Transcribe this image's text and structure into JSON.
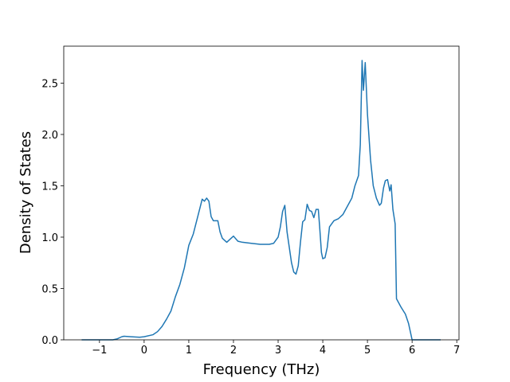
{
  "chart_data": {
    "type": "line",
    "xlabel": "Frequency (THz)",
    "ylabel": "Density of States",
    "color": "#1f77b4",
    "x": [
      -1.4,
      -1.0,
      -0.7,
      -0.6,
      -0.5,
      -0.45,
      -0.3,
      -0.1,
      0,
      0.2,
      0.3,
      0.4,
      0.5,
      0.6,
      0.7,
      0.8,
      0.9,
      1.0,
      1.1,
      1.2,
      1.3,
      1.35,
      1.4,
      1.45,
      1.5,
      1.55,
      1.65,
      1.7,
      1.75,
      1.85,
      1.9,
      2.0,
      2.1,
      2.2,
      2.4,
      2.6,
      2.8,
      2.9,
      3.0,
      3.05,
      3.1,
      3.15,
      3.2,
      3.3,
      3.35,
      3.4,
      3.45,
      3.5,
      3.55,
      3.6,
      3.65,
      3.7,
      3.75,
      3.8,
      3.85,
      3.9,
      3.93,
      3.97,
      4.0,
      4.05,
      4.1,
      4.15,
      4.25,
      4.35,
      4.45,
      4.55,
      4.65,
      4.72,
      4.8,
      4.84,
      4.88,
      4.91,
      4.95,
      5.0,
      5.07,
      5.13,
      5.2,
      5.27,
      5.31,
      5.36,
      5.4,
      5.45,
      5.5,
      5.53,
      5.57,
      5.62,
      5.65,
      5.75,
      5.85,
      5.92,
      5.96,
      6.0,
      6.64
    ],
    "values": [
      0,
      0,
      0,
      0.01,
      0.03,
      0.035,
      0.03,
      0.025,
      0.03,
      0.05,
      0.08,
      0.13,
      0.2,
      0.28,
      0.42,
      0.54,
      0.7,
      0.92,
      1.03,
      1.2,
      1.37,
      1.35,
      1.38,
      1.35,
      1.2,
      1.16,
      1.16,
      1.05,
      0.99,
      0.95,
      0.97,
      1.01,
      0.96,
      0.95,
      0.94,
      0.93,
      0.93,
      0.94,
      1.0,
      1.1,
      1.25,
      1.31,
      1.05,
      0.75,
      0.66,
      0.64,
      0.72,
      0.95,
      1.15,
      1.17,
      1.32,
      1.26,
      1.25,
      1.19,
      1.27,
      1.27,
      1.1,
      0.85,
      0.79,
      0.8,
      0.9,
      1.1,
      1.16,
      1.18,
      1.22,
      1.3,
      1.38,
      1.5,
      1.6,
      1.9,
      2.72,
      2.43,
      2.7,
      2.2,
      1.75,
      1.5,
      1.38,
      1.31,
      1.33,
      1.48,
      1.55,
      1.56,
      1.45,
      1.51,
      1.27,
      1.13,
      0.4,
      0.32,
      0.25,
      0.16,
      0.08,
      0.0,
      0
    ],
    "xlim": [
      -1.8,
      7.05
    ],
    "ylim": [
      0,
      2.86
    ],
    "xticks": [
      {
        "value": -1,
        "label": "−1"
      },
      0,
      1,
      2,
      3,
      4,
      5,
      6,
      7
    ],
    "yticks": [
      {
        "value": 0,
        "label": "0.0"
      },
      0.5,
      {
        "value": 1,
        "label": "1.0"
      },
      1.5,
      {
        "value": 2,
        "label": "2.0"
      },
      2.5
    ]
  }
}
